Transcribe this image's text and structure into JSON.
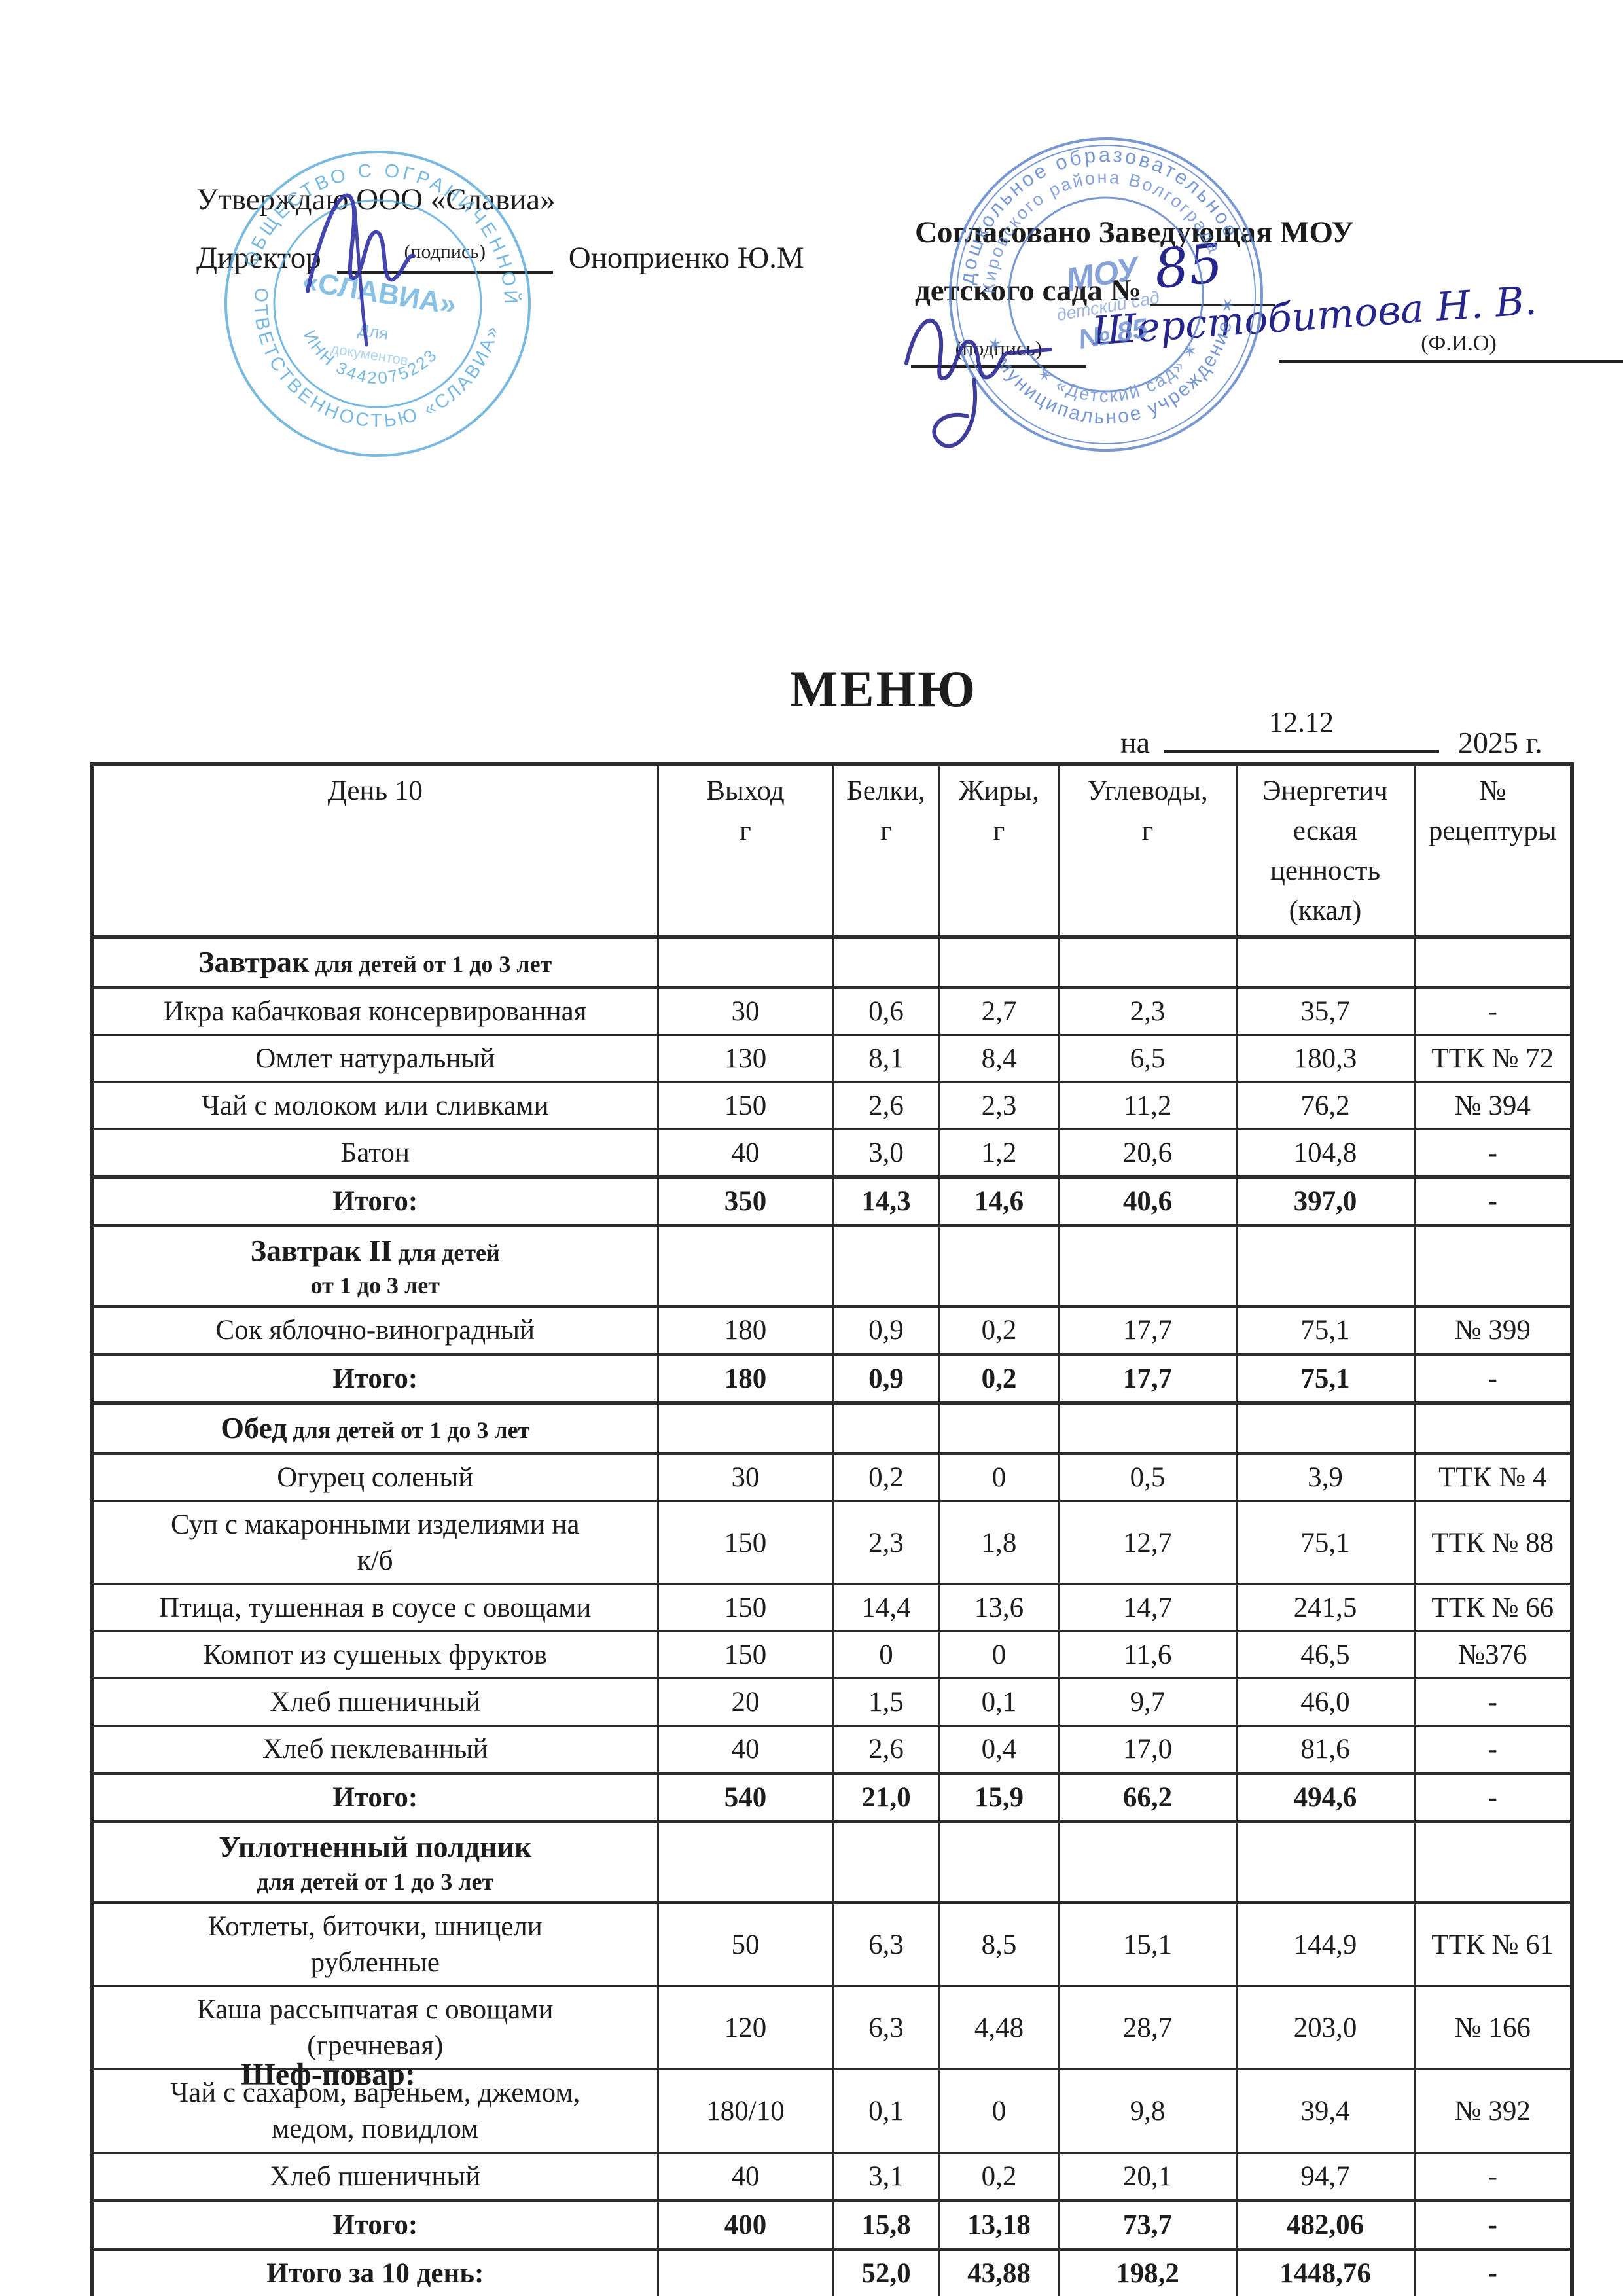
{
  "page": {
    "title": "МЕНЮ",
    "date_prefix": "на",
    "date_value": "12.12",
    "date_suffix": "2025  г.",
    "chef_label": "Шеф-повар:"
  },
  "approvals": {
    "left": {
      "line1": "Утверждаю ООО «Славиа»",
      "role": "Директор",
      "name": "Оноприенко Ю.М",
      "sign_caption": "(подпись)",
      "stamp": {
        "ring_top": "ОБЩЕСТВО С ОГРАНИЧЕННОЙ",
        "ring_bottom": "ОТВЕТСТВЕННОСТЬЮ «СЛАВИА»",
        "inn_arc": "ИНН 3442075223",
        "center1": "«СЛАВИА»",
        "center2": "Для",
        "center3": "документов"
      }
    },
    "right": {
      "line1": "Согласовано Заведующая МОУ",
      "line2": "детского сада №",
      "number_handwritten": "85",
      "signature_name": "Шерстобитова Н. В.",
      "sign_caption": "(подпись)",
      "fio_caption": "(Ф.И.О)",
      "stamp": {
        "ring_outer_top": "дошкольное образовательное",
        "ring_outer_bottom": "✶ муниципальное  учреждение ✶",
        "ring_mid_top": "Кировского района Волгограда",
        "ring_mid_bottom": "✶ «Детский сад» ✶",
        "center1": "МОУ",
        "center2": "детский сад",
        "center3": "№ 85"
      }
    }
  },
  "table": {
    "day_header": "День 10",
    "col_headers": [
      "Выход\nг",
      "Белки,\nг",
      "Жиры,\nг",
      "Углеводы,\nг",
      "Энергетич\nеская\nценность\n(ккал)",
      "№\nрецептуры"
    ],
    "rows": [
      {
        "type": "section",
        "align": "left",
        "title": "Завтрак",
        "suffix": "для детей от 1 до 3 лет",
        "line2": ""
      },
      {
        "type": "item",
        "name": "Икра кабачковая консервированная",
        "out": "30",
        "protein": "0,6",
        "fat": "2,7",
        "carb": "2,3",
        "kcal": "35,7",
        "rec": "-"
      },
      {
        "type": "item",
        "name": "Омлет натуральный",
        "out": "130",
        "protein": "8,1",
        "fat": "8,4",
        "carb": "6,5",
        "kcal": "180,3",
        "rec": "ТТК № 72"
      },
      {
        "type": "item",
        "name": "Чай с молоком или сливками",
        "out": "150",
        "protein": "2,6",
        "fat": "2,3",
        "carb": "11,2",
        "kcal": "76,2",
        "rec": "№ 394"
      },
      {
        "type": "item",
        "name": "Батон",
        "out": "40",
        "protein": "3,0",
        "fat": "1,2",
        "carb": "20,6",
        "kcal": "104,8",
        "rec": "-"
      },
      {
        "type": "total",
        "label": "Итого:",
        "out": "350",
        "protein": "14,3",
        "fat": "14,6",
        "carb": "40,6",
        "kcal": "397,0",
        "rec": "-"
      },
      {
        "type": "section",
        "align": "center",
        "title": "Завтрак II",
        "suffix": "для детей",
        "line2": "от 1 до 3 лет"
      },
      {
        "type": "item",
        "name": "Сок  яблочно-виноградный",
        "out": "180",
        "protein": "0,9",
        "fat": "0,2",
        "carb": "17,7",
        "kcal": "75,1",
        "rec": "№ 399"
      },
      {
        "type": "total",
        "label": "Итого:",
        "out": "180",
        "protein": "0,9",
        "fat": "0,2",
        "carb": "17,7",
        "kcal": "75,1",
        "rec": "-"
      },
      {
        "type": "section",
        "align": "left",
        "title": "Обед",
        "suffix": "для детей от 1 до 3 лет",
        "line2": ""
      },
      {
        "type": "item",
        "name": "Огурец соленый",
        "out": "30",
        "protein": "0,2",
        "fat": "0",
        "carb": "0,5",
        "kcal": "3,9",
        "rec": "ТТК № 4"
      },
      {
        "type": "item",
        "name": "Суп с макаронными изделиями на\nк/б",
        "out": "150",
        "protein": "2,3",
        "fat": "1,8",
        "carb": "12,7",
        "kcal": "75,1",
        "rec": "ТТК № 88"
      },
      {
        "type": "item",
        "name": "Птица, тушенная в соусе с овощами",
        "out": "150",
        "protein": "14,4",
        "fat": "13,6",
        "carb": "14,7",
        "kcal": "241,5",
        "rec": "ТТК № 66"
      },
      {
        "type": "item",
        "name": "Компот из сушеных фруктов",
        "out": "150",
        "protein": "0",
        "fat": "0",
        "carb": "11,6",
        "kcal": "46,5",
        "rec": "№376"
      },
      {
        "type": "item",
        "name": "Хлеб пшеничный",
        "out": "20",
        "protein": "1,5",
        "fat": "0,1",
        "carb": "9,7",
        "kcal": "46,0",
        "rec": "-"
      },
      {
        "type": "item",
        "name": "Хлеб пеклеванный",
        "out": "40",
        "protein": "2,6",
        "fat": "0,4",
        "carb": "17,0",
        "kcal": "81,6",
        "rec": "-"
      },
      {
        "type": "total",
        "label": "Итого:",
        "out": "540",
        "protein": "21,0",
        "fat": "15,9",
        "carb": "66,2",
        "kcal": "494,6",
        "rec": "-"
      },
      {
        "type": "section",
        "align": "center",
        "title": "Уплотненный полдник",
        "suffix": "",
        "line2": "для детей от 1 до 3 лет"
      },
      {
        "type": "item",
        "name": "Котлеты, биточки, шницели\nрубленные",
        "out": "50",
        "protein": "6,3",
        "fat": "8,5",
        "carb": "15,1",
        "kcal": "144,9",
        "rec": "ТТК № 61"
      },
      {
        "type": "item",
        "name": "Каша рассыпчатая с овощами\n(гречневая)",
        "out": "120",
        "protein": "6,3",
        "fat": "4,48",
        "carb": "28,7",
        "kcal": "203,0",
        "rec": "№ 166"
      },
      {
        "type": "item",
        "name": "Чай с сахаром, вареньем, джемом,\nмедом, повидлом",
        "out": "180/10",
        "protein": "0,1",
        "fat": "0",
        "carb": "9,8",
        "kcal": "39,4",
        "rec": "№ 392"
      },
      {
        "type": "item",
        "name": "Хлеб пшеничный",
        "out": "40",
        "protein": "3,1",
        "fat": "0,2",
        "carb": "20,1",
        "kcal": "94,7",
        "rec": "-"
      },
      {
        "type": "total",
        "label": "Итого:",
        "out": "400",
        "protein": "15,8",
        "fat": "13,18",
        "carb": "73,7",
        "kcal": "482,06",
        "rec": "-"
      },
      {
        "type": "total",
        "label": "Итого за 10 день:",
        "out": "",
        "protein": "52,0",
        "fat": "43,88",
        "carb": "198,2",
        "kcal": "1448,76",
        "rec": "-"
      }
    ]
  }
}
